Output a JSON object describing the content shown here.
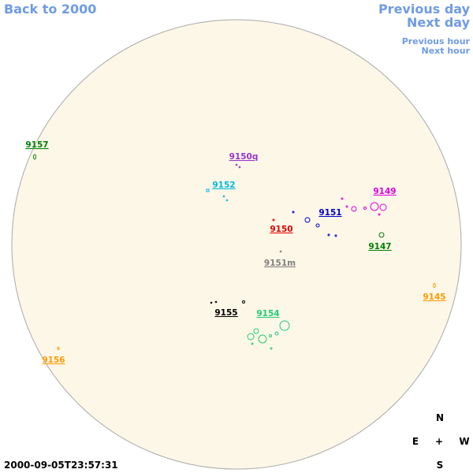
{
  "nav": {
    "back": "Back to 2000",
    "previous_day": "Previous day",
    "next_day": "Next day",
    "previous_hour": "Previous hour",
    "next_hour": "Next hour"
  },
  "regions": [
    {
      "label": "9157",
      "color": "#008000"
    },
    {
      "label": "9150q",
      "color": "#9933cc"
    },
    {
      "label": "9152",
      "color": "#00b8e0"
    },
    {
      "label": "9149",
      "color": "#e000e0"
    },
    {
      "label": "9151",
      "color": "#0000cc"
    },
    {
      "label": "9150",
      "color": "#e00000"
    },
    {
      "label": "9147",
      "color": "#008000"
    },
    {
      "label": "9151m",
      "color": "#808080"
    },
    {
      "label": "9145",
      "color": "#ff9900"
    },
    {
      "label": "9155",
      "color": "#000000"
    },
    {
      "label": "9154",
      "color": "#22cc77"
    },
    {
      "label": "9156",
      "color": "#ff9900"
    }
  ],
  "compass": {
    "north": "N",
    "east": "E",
    "center": "+",
    "west": "W",
    "south": "S"
  },
  "timestamp": "2000-09-05T23:57:31"
}
